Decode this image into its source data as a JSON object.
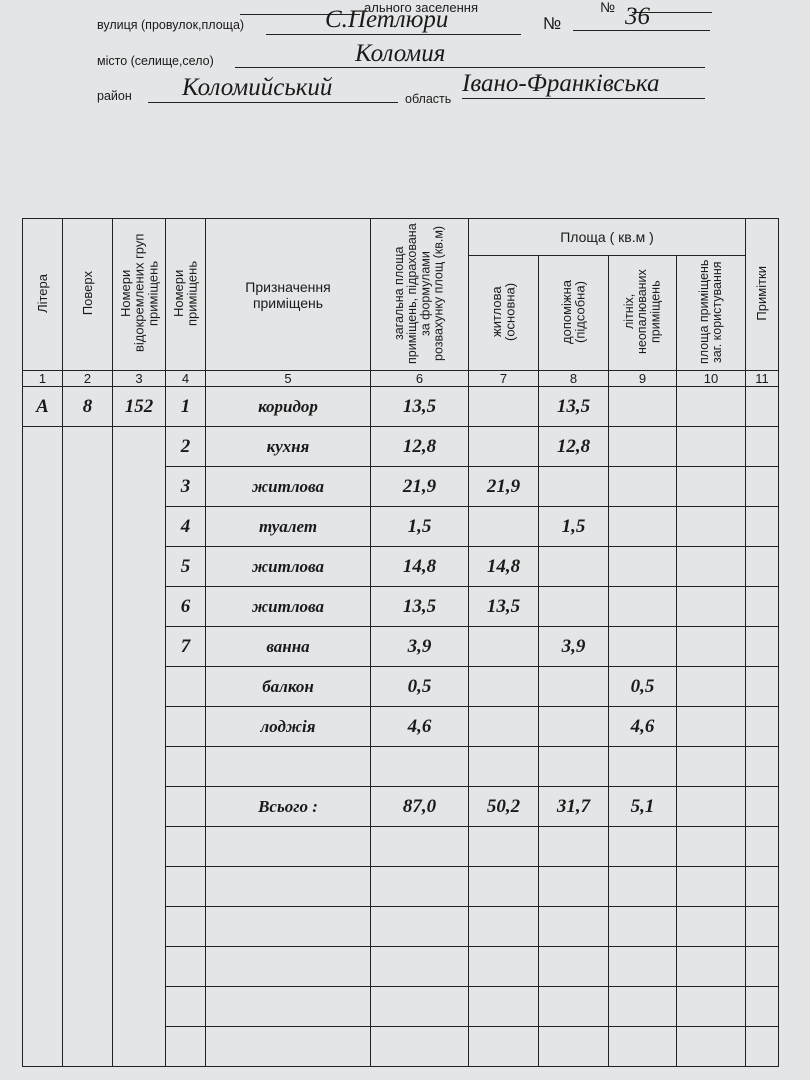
{
  "header": {
    "top_fragment": "ального заселення",
    "top_number_label": "№",
    "street_label": "вулиця (провулок,площа)",
    "street_value": "С.Петлюри",
    "number_label": "№",
    "number_value": "36",
    "city_label": "місто (селище,село)",
    "city_value": "Коломия",
    "district_label": "район",
    "district_value": "Коломийський",
    "region_label": "область",
    "region_value": "Івано-Франківська"
  },
  "table": {
    "columns": {
      "c1": "Літера",
      "c2": "Поверх",
      "c3": "Номери відокремлених груп приміщень",
      "c4": "Номери приміщень",
      "c5": "Призначення приміщень",
      "c6": "загальна площа приміщень, підрахована за формулами розвахунку площ (кв.м)",
      "area_group": "Площа ( кв.м )",
      "c7": "житлова (основна)",
      "c8": "допоміжна (підсобна)",
      "c9": "літніх, неопалюваних приміщень",
      "c10": "площа приміщень заг. користування",
      "c11": "Примітки"
    },
    "column_numbers": [
      "1",
      "2",
      "3",
      "4",
      "5",
      "6",
      "7",
      "8",
      "9",
      "10",
      "11"
    ],
    "litera": "А",
    "floor": "8",
    "group_number": "152",
    "rows": [
      {
        "num": "1",
        "purpose": "коридор",
        "total": "13,5",
        "living": "",
        "aux": "13,5",
        "summer": "",
        "common": "",
        "notes": ""
      },
      {
        "num": "2",
        "purpose": "кухня",
        "total": "12,8",
        "living": "",
        "aux": "12,8",
        "summer": "",
        "common": "",
        "notes": ""
      },
      {
        "num": "3",
        "purpose": "житлова",
        "total": "21,9",
        "living": "21,9",
        "aux": "",
        "summer": "",
        "common": "",
        "notes": ""
      },
      {
        "num": "4",
        "purpose": "туалет",
        "total": "1,5",
        "living": "",
        "aux": "1,5",
        "summer": "",
        "common": "",
        "notes": ""
      },
      {
        "num": "5",
        "purpose": "житлова",
        "total": "14,8",
        "living": "14,8",
        "aux": "",
        "summer": "",
        "common": "",
        "notes": ""
      },
      {
        "num": "6",
        "purpose": "житлова",
        "total": "13,5",
        "living": "13,5",
        "aux": "",
        "summer": "",
        "common": "",
        "notes": ""
      },
      {
        "num": "7",
        "purpose": "ванна",
        "total": "3,9",
        "living": "",
        "aux": "3,9",
        "summer": "",
        "common": "",
        "notes": ""
      },
      {
        "num": "",
        "purpose": "балкон",
        "total": "0,5",
        "living": "",
        "aux": "",
        "summer": "0,5",
        "common": "",
        "notes": ""
      },
      {
        "num": "",
        "purpose": "лоджія",
        "total": "4,6",
        "living": "",
        "aux": "",
        "summer": "4,6",
        "common": "",
        "notes": ""
      },
      {
        "num": "",
        "purpose": "",
        "total": "",
        "living": "",
        "aux": "",
        "summer": "",
        "common": "",
        "notes": ""
      },
      {
        "num": "",
        "purpose": "Всього :",
        "total": "87,0",
        "living": "50,2",
        "aux": "31,7",
        "summer": "5,1",
        "common": "",
        "notes": ""
      },
      {
        "num": "",
        "purpose": "",
        "total": "",
        "living": "",
        "aux": "",
        "summer": "",
        "common": "",
        "notes": ""
      },
      {
        "num": "",
        "purpose": "",
        "total": "",
        "living": "",
        "aux": "",
        "summer": "",
        "common": "",
        "notes": ""
      },
      {
        "num": "",
        "purpose": "",
        "total": "",
        "living": "",
        "aux": "",
        "summer": "",
        "common": "",
        "notes": ""
      },
      {
        "num": "",
        "purpose": "",
        "total": "",
        "living": "",
        "aux": "",
        "summer": "",
        "common": "",
        "notes": ""
      },
      {
        "num": "",
        "purpose": "",
        "total": "",
        "living": "",
        "aux": "",
        "summer": "",
        "common": "",
        "notes": ""
      },
      {
        "num": "",
        "purpose": "",
        "total": "",
        "living": "",
        "aux": "",
        "summer": "",
        "common": "",
        "notes": ""
      }
    ]
  }
}
